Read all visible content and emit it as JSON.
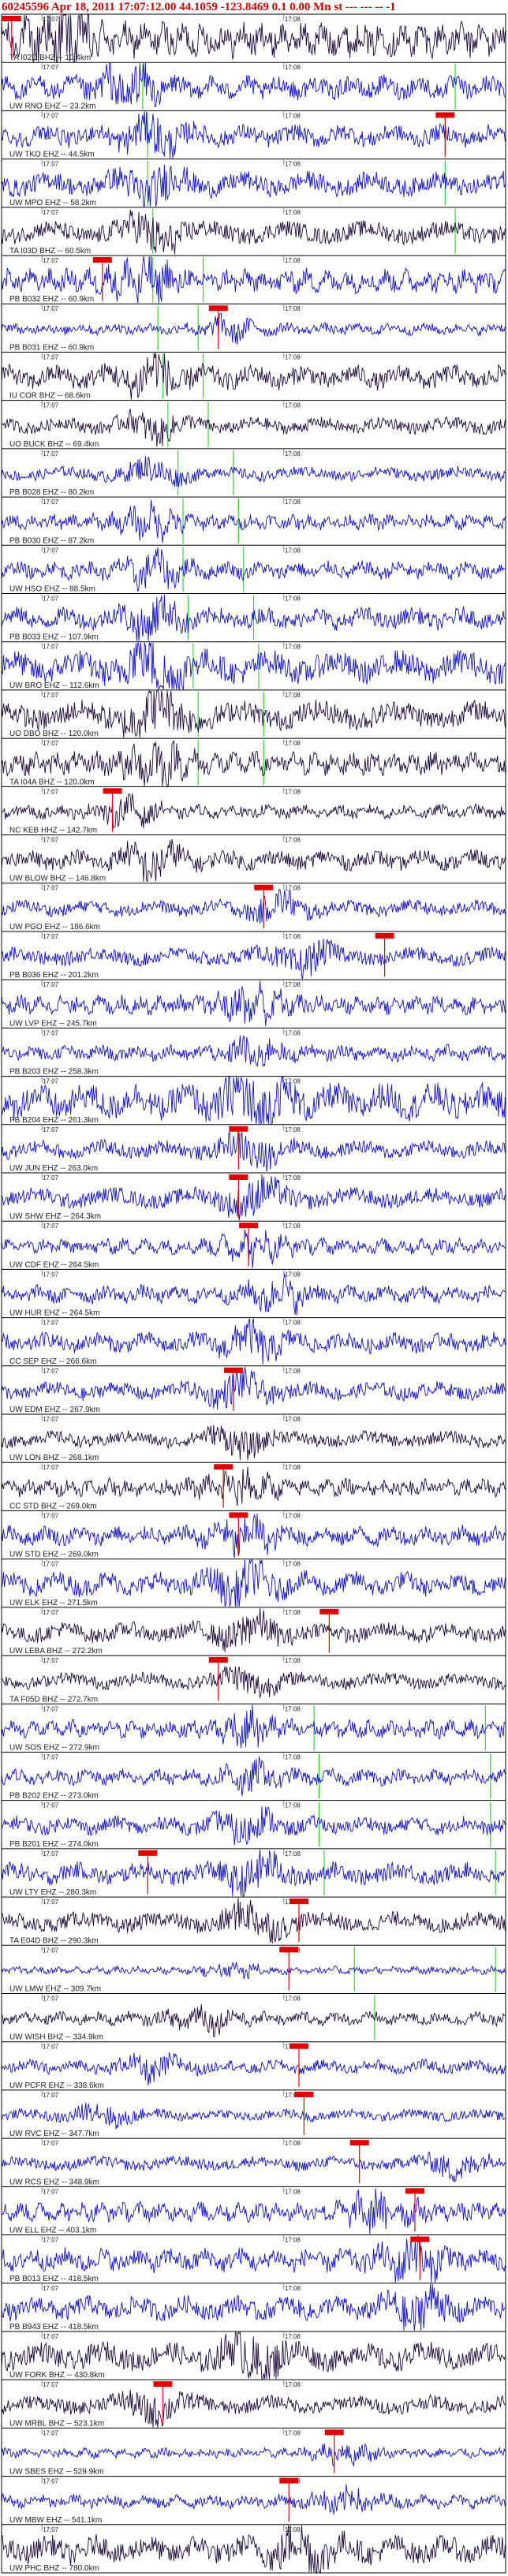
{
  "header": {
    "title": "60245596  Apr 18, 2011 17:07:12.00    44.1059  -123.8469   0.1  0.00  Mn st   --- --- --  -1"
  },
  "chart_data": {
    "type": "seismogram record section",
    "title": "60245596  Apr 18, 2011 17:07:12.00    44.1059  -123.8469   0.1  0.00  Mn st   --- --- --  -1",
    "time_tick_labels": [
      "17:07",
      "17:08"
    ],
    "traces": [
      {
        "label": "TA I02D BHZ -- 10.4km",
        "color": "#1a0a3a",
        "amp": 0.9,
        "event": 0.12,
        "pick": 0.02,
        "greens": []
      },
      {
        "label": "UW RNO EHZ -- 23.2km",
        "color": "#1010d0",
        "amp": 0.6,
        "event": 0.25,
        "pick": null,
        "greens": [
          0.28,
          0.9
        ]
      },
      {
        "label": "UW TKO EHZ -- 44.5km",
        "color": "#1010d0",
        "amp": 0.55,
        "event": 0.3,
        "pick": 0.88,
        "greens": [
          0.29,
          0.88
        ]
      },
      {
        "label": "UW MPO EHZ -- 58.2km",
        "color": "#1010d0",
        "amp": 0.6,
        "event": 0.3,
        "pick": null,
        "greens": [
          0.29,
          0.88
        ]
      },
      {
        "label": "TA I03D BHZ -- 60.5km",
        "color": "#1a0a3a",
        "amp": 0.55,
        "event": 0.3,
        "pick": null,
        "greens": [
          0.3,
          0.9
        ]
      },
      {
        "label": "PB B032 EHZ -- 60.9km",
        "color": "#1010d0",
        "amp": 0.6,
        "event": 0.28,
        "pick": 0.2,
        "greens": [
          0.3,
          0.4
        ]
      },
      {
        "label": "PB B031 EHZ -- 60.9km",
        "color": "#1010d0",
        "amp": 0.3,
        "event": 0.45,
        "pick": 0.43,
        "greens": [
          0.31,
          0.39
        ]
      },
      {
        "label": "IU COR BHZ -- 68.6km",
        "color": "#1a0a3a",
        "amp": 0.6,
        "event": 0.3,
        "pick": null,
        "greens": [
          0.32,
          0.4
        ]
      },
      {
        "label": "UO BUCK BHZ -- 69.4km",
        "color": "#1a0a3a",
        "amp": 0.4,
        "event": 0.3,
        "pick": null,
        "greens": [
          0.33,
          0.41
        ]
      },
      {
        "label": "PB B028 EHZ -- 80.2km",
        "color": "#1010d0",
        "amp": 0.35,
        "event": 0.3,
        "pick": null,
        "greens": [
          0.35,
          0.46
        ]
      },
      {
        "label": "PB B030 EHZ -- 87.2km",
        "color": "#1010d0",
        "amp": 0.4,
        "event": 0.3,
        "pick": null,
        "greens": [
          0.36,
          0.47
        ]
      },
      {
        "label": "UW HSO EHZ -- 88.5km",
        "color": "#1010d0",
        "amp": 0.45,
        "event": 0.3,
        "pick": null,
        "greens": [
          0.36,
          0.48
        ]
      },
      {
        "label": "PB B033 EHZ -- 107.9km",
        "color": "#1010d0",
        "amp": 0.55,
        "event": 0.3,
        "pick": null,
        "greens": [
          0.37,
          0.5
        ]
      },
      {
        "label": "UW BRO EHZ -- 112.6km",
        "color": "#1010d0",
        "amp": 0.8,
        "event": 0.3,
        "pick": null,
        "greens": [
          0.38,
          0.51
        ]
      },
      {
        "label": "UO DBO BHZ -- 120.0km",
        "color": "#1a0a3a",
        "amp": 0.7,
        "event": 0.3,
        "pick": null,
        "greens": [
          0.39,
          0.52
        ]
      },
      {
        "label": "TA I04A BHZ -- 120.0km",
        "color": "#1a0a3a",
        "amp": 0.6,
        "event": 0.3,
        "pick": null,
        "greens": [
          0.39,
          0.52
        ]
      },
      {
        "label": "NC KEB HHZ -- 142.7km",
        "color": "#1a0a3a",
        "amp": 0.35,
        "event": 0.25,
        "pick": 0.22,
        "greens": []
      },
      {
        "label": "UW BLOW BHZ -- 146.8km",
        "color": "#1a0a3a",
        "amp": 0.5,
        "event": 0.3,
        "pick": null,
        "greens": []
      },
      {
        "label": "UW PGO EHZ -- 186.6km",
        "color": "#1010d0",
        "amp": 0.4,
        "event": 0.55,
        "pick": 0.52,
        "greens": []
      },
      {
        "label": "PB B036 EHZ -- 201.2km",
        "color": "#1010d0",
        "amp": 0.45,
        "event": 0.6,
        "pick": 0.76,
        "greens": []
      },
      {
        "label": "UW LVP EHZ -- 245.7km",
        "color": "#1010d0",
        "amp": 0.5,
        "event": 0.5,
        "pick": null,
        "greens": []
      },
      {
        "label": "PB B203 EHZ -- 258.3km",
        "color": "#1010d0",
        "amp": 0.4,
        "event": 0.5,
        "pick": null,
        "greens": []
      },
      {
        "label": "PB B204 EHZ -- 261.3km",
        "color": "#1010d0",
        "amp": 0.9,
        "event": 0.5,
        "pick": null,
        "greens": []
      },
      {
        "label": "UW JUN EHZ -- 263.0km",
        "color": "#1010d0",
        "amp": 0.45,
        "event": 0.5,
        "pick": 0.47,
        "greens": []
      },
      {
        "label": "UW SHW EHZ -- 264.3km",
        "color": "#1010d0",
        "amp": 0.5,
        "event": 0.5,
        "pick": 0.47,
        "greens": []
      },
      {
        "label": "UW CDF EHZ -- 264.5km",
        "color": "#1010d0",
        "amp": 0.4,
        "event": 0.5,
        "pick": 0.49,
        "greens": []
      },
      {
        "label": "UW HUR EHZ -- 264.5km",
        "color": "#1010d0",
        "amp": 0.45,
        "event": 0.55,
        "pick": null,
        "greens": []
      },
      {
        "label": "CC SEP EHZ -- 266.6km",
        "color": "#1010d0",
        "amp": 0.5,
        "event": 0.5,
        "pick": null,
        "greens": []
      },
      {
        "label": "UW EDM EHZ -- 267.9km",
        "color": "#1010d0",
        "amp": 0.45,
        "event": 0.47,
        "pick": 0.46,
        "greens": []
      },
      {
        "label": "UW LON BHZ -- 268.1km",
        "color": "#1a0a3a",
        "amp": 0.4,
        "event": 0.47,
        "pick": null,
        "greens": []
      },
      {
        "label": "CC STD BHZ -- 269.0km",
        "color": "#1a0a3a",
        "amp": 0.45,
        "event": 0.47,
        "pick": 0.44,
        "greens": []
      },
      {
        "label": "UW STD EHZ -- 269.0km",
        "color": "#1010d0",
        "amp": 0.5,
        "event": 0.48,
        "pick": 0.47,
        "greens": []
      },
      {
        "label": "UW ELK EHZ -- 271.5km",
        "color": "#1010d0",
        "amp": 0.6,
        "event": 0.48,
        "pick": null,
        "greens": []
      },
      {
        "label": "UW LEBA BHZ -- 272.2km",
        "color": "#1a0a3a",
        "amp": 0.5,
        "event": 0.49,
        "pick": 0.65,
        "greens": []
      },
      {
        "label": "TA F05D BHZ -- 272.7km",
        "color": "#1a0a3a",
        "amp": 0.4,
        "event": 0.49,
        "pick": 0.43,
        "greens": []
      },
      {
        "label": "UW SOS EHZ -- 272.9km",
        "color": "#1010d0",
        "amp": 0.45,
        "event": 0.49,
        "pick": null,
        "greens": [
          0.62,
          0.96
        ]
      },
      {
        "label": "PB B202 EHZ -- 273.0km",
        "color": "#1010d0",
        "amp": 0.4,
        "event": 0.49,
        "pick": null,
        "greens": [
          0.63,
          0.97
        ]
      },
      {
        "label": "PB B201 EHZ -- 274.0km",
        "color": "#1010d0",
        "amp": 0.45,
        "event": 0.49,
        "pick": null,
        "greens": [
          0.63,
          0.97
        ]
      },
      {
        "label": "UW LTY EHZ -- 280.3km",
        "color": "#1010d0",
        "amp": 0.55,
        "event": 0.5,
        "pick": 0.29,
        "greens": [
          0.64,
          0.98
        ]
      },
      {
        "label": "TA E04D BHZ -- 290.3km",
        "color": "#1a0a3a",
        "amp": 0.5,
        "event": 0.5,
        "pick": 0.59,
        "greens": []
      },
      {
        "label": "UW LMW EHZ -- 309.7km",
        "color": "#1010d0",
        "amp": 0.2,
        "event": 0.46,
        "pick": 0.57,
        "greens": [
          0.7,
          0.98
        ]
      },
      {
        "label": "UW WISH BHZ -- 334.9km",
        "color": "#1a0a3a",
        "amp": 0.35,
        "event": 0.4,
        "pick": null,
        "greens": [
          0.74
        ]
      },
      {
        "label": "UW PCFR EHZ -- 338.6km",
        "color": "#1010d0",
        "amp": 0.35,
        "event": 0.3,
        "pick": 0.59,
        "greens": []
      },
      {
        "label": "UW RVC EHZ -- 347.7km",
        "color": "#1010d0",
        "amp": 0.3,
        "event": 0.2,
        "pick": 0.6,
        "greens": []
      },
      {
        "label": "UW RCS EHZ -- 348.9km",
        "color": "#1010d0",
        "amp": 0.35,
        "event": 0.9,
        "pick": 0.71,
        "greens": []
      },
      {
        "label": "UW ELL EHZ -- 403.1km",
        "color": "#1010d0",
        "amp": 0.5,
        "event": 0.75,
        "pick": 0.82,
        "greens": []
      },
      {
        "label": "PB B013 EHZ -- 418.5km",
        "color": "#1010d0",
        "amp": 0.6,
        "event": 0.82,
        "pick": 0.83,
        "greens": []
      },
      {
        "label": "PB B943 EHZ -- 418.5km",
        "color": "#1010d0",
        "amp": 0.6,
        "event": 0.83,
        "pick": null,
        "greens": []
      },
      {
        "label": "UW FORK BHZ -- 430.8km",
        "color": "#1a0a3a",
        "amp": 0.7,
        "event": 0.5,
        "pick": null,
        "greens": []
      },
      {
        "label": "UW MRBL BHZ -- 523.1km",
        "color": "#1a0a3a",
        "amp": 0.45,
        "event": 0.3,
        "pick": 0.32,
        "greens": []
      },
      {
        "label": "UW SBES EHZ -- 529.9km",
        "color": "#1010d0",
        "amp": 0.25,
        "event": 0.68,
        "pick": 0.66,
        "greens": []
      },
      {
        "label": "UW MBW EHZ -- 541.1km",
        "color": "#1010d0",
        "amp": 0.35,
        "event": 0.68,
        "pick": 0.57,
        "greens": []
      },
      {
        "label": "UW PHC BHZ -- 780.0km",
        "color": "#1a0a3a",
        "amp": 0.7,
        "event": 0.6,
        "pick": null,
        "greens": []
      }
    ]
  }
}
